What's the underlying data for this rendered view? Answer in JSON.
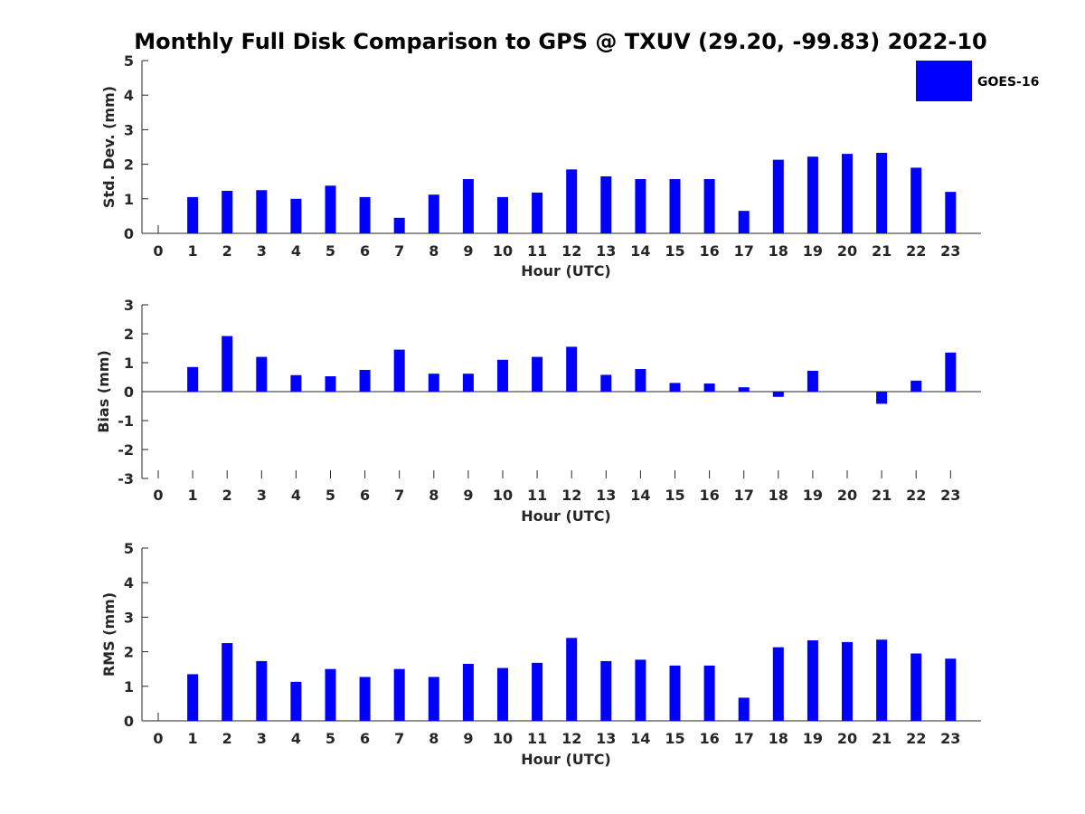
{
  "title": "Monthly Full Disk Comparison to GPS @ TXUV (29.20, -99.83) 2022-10",
  "legend": {
    "label": "GOES-16",
    "color": "#0000ff",
    "position": "top-right"
  },
  "chart_data": [
    {
      "type": "bar",
      "xlabel": "Hour (UTC)",
      "ylabel": "Std. Dev. (mm)",
      "ylim": [
        0,
        5
      ],
      "yticks": [
        "0",
        "1",
        "2",
        "3",
        "4",
        "5"
      ],
      "categories": [
        "0",
        "1",
        "2",
        "3",
        "4",
        "5",
        "6",
        "7",
        "8",
        "9",
        "10",
        "11",
        "12",
        "13",
        "14",
        "15",
        "16",
        "17",
        "18",
        "19",
        "20",
        "21",
        "22",
        "23"
      ],
      "series": [
        {
          "name": "GOES-16",
          "color": "#0000ff",
          "values": [
            0,
            1.05,
            1.23,
            1.25,
            1.0,
            1.38,
            1.05,
            0.45,
            1.12,
            1.57,
            1.05,
            1.18,
            1.85,
            1.65,
            1.57,
            1.57,
            1.57,
            0.65,
            2.13,
            2.22,
            2.3,
            2.33,
            1.9,
            1.2
          ]
        }
      ],
      "grid": false
    },
    {
      "type": "bar",
      "xlabel": "Hour (UTC)",
      "ylabel": "Bias (mm)",
      "ylim": [
        -3,
        3
      ],
      "yticks": [
        "-3",
        "-2",
        "-1",
        "0",
        "1",
        "2",
        "3"
      ],
      "categories": [
        "0",
        "1",
        "2",
        "3",
        "4",
        "5",
        "6",
        "7",
        "8",
        "9",
        "10",
        "11",
        "12",
        "13",
        "14",
        "15",
        "16",
        "17",
        "18",
        "19",
        "20",
        "21",
        "22",
        "23"
      ],
      "series": [
        {
          "name": "GOES-16",
          "color": "#0000ff",
          "values": [
            0,
            0.85,
            1.92,
            1.2,
            0.57,
            0.53,
            0.75,
            1.45,
            0.62,
            0.62,
            1.1,
            1.2,
            1.55,
            0.58,
            0.78,
            0.3,
            0.28,
            0.15,
            -0.18,
            0.72,
            0,
            -0.42,
            0.38,
            1.35
          ]
        }
      ],
      "grid": false
    },
    {
      "type": "bar",
      "xlabel": "Hour (UTC)",
      "ylabel": "RMS (mm)",
      "ylim": [
        0,
        5
      ],
      "yticks": [
        "0",
        "1",
        "2",
        "3",
        "4",
        "5"
      ],
      "categories": [
        "0",
        "1",
        "2",
        "3",
        "4",
        "5",
        "6",
        "7",
        "8",
        "9",
        "10",
        "11",
        "12",
        "13",
        "14",
        "15",
        "16",
        "17",
        "18",
        "19",
        "20",
        "21",
        "22",
        "23"
      ],
      "series": [
        {
          "name": "GOES-16",
          "color": "#0000ff",
          "values": [
            0,
            1.35,
            2.25,
            1.73,
            1.13,
            1.5,
            1.27,
            1.5,
            1.27,
            1.65,
            1.53,
            1.68,
            2.4,
            1.73,
            1.77,
            1.6,
            1.6,
            0.67,
            2.13,
            2.33,
            2.28,
            2.35,
            1.95,
            1.8
          ]
        }
      ],
      "grid": false
    }
  ]
}
